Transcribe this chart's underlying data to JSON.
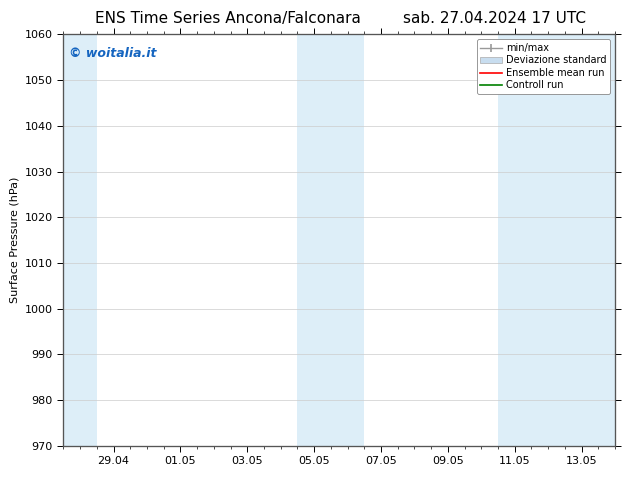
{
  "title_left": "ENS Time Series Ancona/Falconara",
  "title_right": "sab. 27.04.2024 17 UTC",
  "ylabel": "Surface Pressure (hPa)",
  "ylim": [
    970,
    1060
  ],
  "yticks": [
    970,
    980,
    990,
    1000,
    1010,
    1020,
    1030,
    1040,
    1050,
    1060
  ],
  "xlim": [
    0,
    16.5
  ],
  "xtick_labels": [
    "29.04",
    "01.05",
    "03.05",
    "05.05",
    "07.05",
    "09.05",
    "11.05",
    "13.05"
  ],
  "xtick_positions": [
    1.5,
    3.5,
    5.5,
    7.5,
    9.5,
    11.5,
    13.5,
    15.5
  ],
  "shaded_bands": [
    {
      "x_start": 0.0,
      "x_end": 1.0,
      "color": "#ddeef8"
    },
    {
      "x_start": 7.0,
      "x_end": 9.0,
      "color": "#ddeef8"
    },
    {
      "x_start": 13.0,
      "x_end": 16.5,
      "color": "#ddeef8"
    }
  ],
  "watermark_text": "© woitalia.it",
  "watermark_color": "#1565c0",
  "watermark_fontsize": 9,
  "legend_labels": [
    "min/max",
    "Deviazione standard",
    "Ensemble mean run",
    "Controll run"
  ],
  "background_color": "#ffffff",
  "plot_bg_color": "#ffffff",
  "grid_color": "#cccccc",
  "title_fontsize": 11,
  "axis_label_fontsize": 8,
  "tick_fontsize": 8,
  "figsize": [
    6.34,
    4.9
  ],
  "dpi": 100
}
